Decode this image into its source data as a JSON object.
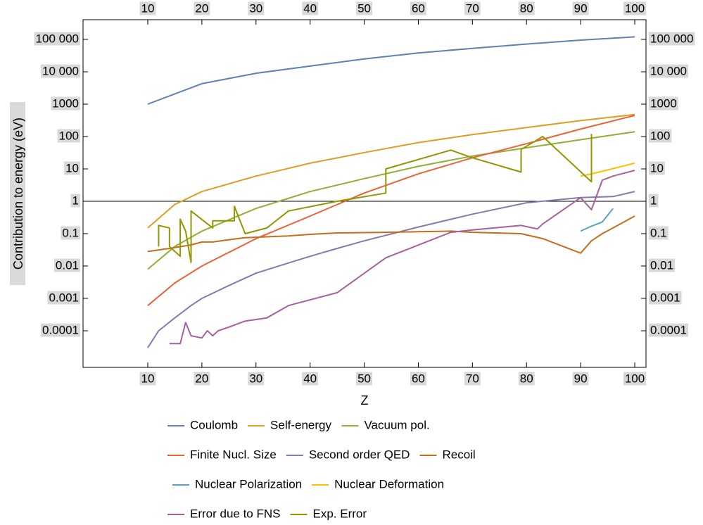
{
  "chart_data": {
    "type": "line",
    "xlabel": "Z",
    "ylabel": "Contribution to energy (eV)",
    "xlim": [
      0,
      100
    ],
    "ylim": [
      5e-06,
      300000
    ],
    "yscale": "log",
    "x_ticks": [
      "10",
      "20",
      "30",
      "40",
      "50",
      "60",
      "70",
      "80",
      "90",
      "100"
    ],
    "y_ticks": [
      {
        "value": 100000,
        "label": "100 000"
      },
      {
        "value": 10000,
        "label": "10 000"
      },
      {
        "value": 1000,
        "label": "1000"
      },
      {
        "value": 100,
        "label": "100"
      },
      {
        "value": 10,
        "label": "10"
      },
      {
        "value": 1,
        "label": "1"
      },
      {
        "value": 0.1,
        "label": "0.1"
      },
      {
        "value": 0.01,
        "label": "0.01"
      },
      {
        "value": 0.001,
        "label": "0.001"
      },
      {
        "value": 0.0001,
        "label": "0.0001"
      }
    ],
    "reference_line": 1,
    "legend_position": "bottom",
    "series": [
      {
        "name": "Coulomb",
        "color": "#5e81b5",
        "x": [
          10,
          20,
          30,
          40,
          50,
          60,
          70,
          80,
          90,
          100
        ],
        "y": [
          1000,
          4300,
          9000,
          15000,
          25000,
          38000,
          53000,
          72000,
          95000,
          120000
        ]
      },
      {
        "name": "Self-energy",
        "color": "#e19c24",
        "x": [
          10,
          15,
          20,
          30,
          40,
          50,
          60,
          70,
          80,
          90,
          100
        ],
        "y": [
          0.15,
          0.8,
          2,
          6,
          15,
          32,
          65,
          115,
          190,
          310,
          480
        ]
      },
      {
        "name": "Vacuum pol.",
        "color": "#8fb032",
        "x": [
          10,
          15,
          20,
          30,
          40,
          50,
          60,
          70,
          80,
          90,
          100
        ],
        "y": [
          0.008,
          0.04,
          0.12,
          0.6,
          2,
          5,
          12,
          25,
          45,
          80,
          140
        ]
      },
      {
        "name": "Finite Nucl. Size",
        "color": "#eb6235",
        "x": [
          10,
          15,
          20,
          30,
          40,
          50,
          60,
          70,
          80,
          90,
          100
        ],
        "y": [
          0.0006,
          0.003,
          0.01,
          0.07,
          0.35,
          1.8,
          7,
          22,
          60,
          170,
          450
        ]
      },
      {
        "name": "Second order QED",
        "color": "#8778b3",
        "x": [
          10,
          12,
          15,
          18,
          20,
          25,
          30,
          35,
          40,
          45,
          50,
          60,
          70,
          80,
          90,
          96,
          100
        ],
        "y": [
          3e-05,
          0.0001,
          0.00025,
          0.0006,
          0.001,
          0.0025,
          0.006,
          0.011,
          0.02,
          0.035,
          0.06,
          0.16,
          0.4,
          0.9,
          1.3,
          1.4,
          2
        ]
      },
      {
        "name": "Recoil",
        "color": "#c56e1a",
        "x": [
          10,
          14,
          18,
          20,
          22,
          25,
          28,
          32,
          36,
          40,
          45,
          54,
          60,
          66,
          70,
          79,
          83,
          90,
          92,
          94,
          96,
          100
        ],
        "y": [
          0.028,
          0.035,
          0.045,
          0.055,
          0.055,
          0.065,
          0.075,
          0.08,
          0.085,
          0.095,
          0.105,
          0.11,
          0.115,
          0.12,
          0.11,
          0.1,
          0.07,
          0.025,
          0.06,
          0.1,
          0.15,
          0.35
        ]
      },
      {
        "name": "Nuclear Polarization",
        "color": "#5d9ec7",
        "x": [
          90,
          92,
          94,
          96
        ],
        "y": [
          0.12,
          0.17,
          0.23,
          0.6
        ]
      },
      {
        "name": "Nuclear Deformation",
        "color": "#ffbf00",
        "x": [
          90,
          92,
          100
        ],
        "y": [
          6,
          7,
          15
        ]
      },
      {
        "name": "Error due to FNS",
        "color": "#a5609d",
        "x": [
          14,
          16,
          17,
          18,
          20,
          21,
          22,
          23,
          25,
          28,
          32,
          36,
          45,
          54,
          66,
          70,
          79,
          82,
          83,
          90,
          92,
          94,
          96,
          100
        ],
        "y": [
          4e-05,
          4e-05,
          0.00018,
          7e-05,
          6e-05,
          0.0001,
          7e-05,
          0.0001,
          0.00013,
          0.0002,
          0.00025,
          0.0006,
          0.0015,
          0.018,
          0.11,
          0.13,
          0.18,
          0.14,
          0.2,
          1.3,
          0.55,
          4.5,
          6,
          9
        ]
      },
      {
        "name": "Exp. Error",
        "color": "#929600",
        "x": [
          12,
          12,
          14,
          14,
          16,
          16,
          17,
          18,
          18,
          22,
          22,
          23,
          26,
          26,
          28,
          32,
          36,
          45,
          54,
          54,
          66,
          70,
          79,
          79,
          83,
          92,
          92
        ],
        "y": [
          0.04,
          0.18,
          0.15,
          0.04,
          0.02,
          0.28,
          0.12,
          0.013,
          0.5,
          0.15,
          0.25,
          0.25,
          0.25,
          0.7,
          0.1,
          0.15,
          0.5,
          1,
          1.8,
          10,
          38,
          22,
          8,
          40,
          100,
          4,
          120
        ]
      }
    ]
  }
}
